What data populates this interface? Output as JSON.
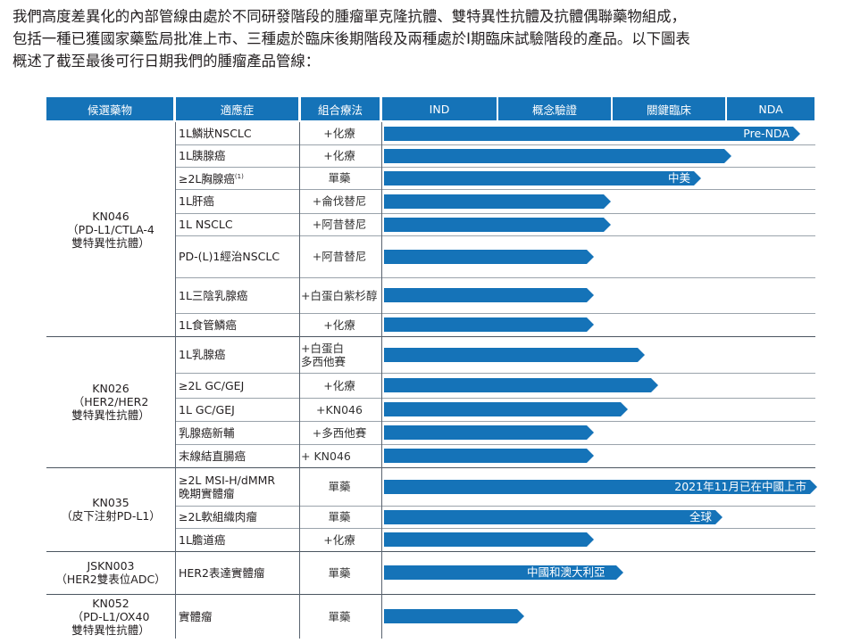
{
  "intro": [
    "我們高度差異化的內部管線由處於不同研發階段的腫瘤單克隆抗體、雙特異性抗體及抗體偶聯藥物組成，",
    "包括一種已獲國家藥監局批准上市、三種處於臨床後期階段及兩種處於I期臨床試驗階段的產品。以下圖表",
    "概述了截至最後可行日期我們的腫瘤產品管線："
  ],
  "headers": {
    "candidate": "候選藥物",
    "indication": "適應症",
    "combination": "組合療法",
    "ind": "IND",
    "poc": "概念驗證",
    "pivotal": "關鍵臨床",
    "nda": "NDA"
  },
  "drugs": [
    {
      "lines": [
        "KN046",
        "（PD-L1/CTLA-4",
        "雙特異性抗體）"
      ]
    },
    {
      "lines": [
        "KN026",
        "（HER2/HER2",
        "雙特異性抗體）"
      ]
    },
    {
      "lines": [
        "KN035",
        "（皮下注射PD-L1）"
      ]
    },
    {
      "lines": [
        "JSKN003",
        "（HER2雙表位ADC）"
      ]
    },
    {
      "lines": [
        "KN052",
        "（PD-L1/OX40",
        "雙特異性抗體）"
      ]
    }
  ],
  "rows": [
    {
      "indication": "1L鱗狀NSCLC",
      "combination": "+化療",
      "progress": 0.95,
      "label": "Pre-NDA"
    },
    {
      "indication": "1L胰腺癌",
      "combination": "+化療",
      "progress": 0.79,
      "label": ""
    },
    {
      "indication": "≥2L胸腺癌",
      "indication_sup": "(1)",
      "combination": "單藥",
      "progress": 0.72,
      "label": "中美"
    },
    {
      "indication": "1L肝癌",
      "combination": "+侖伐替尼",
      "progress": 0.51,
      "label": ""
    },
    {
      "indication": "1L NSCLC",
      "combination": "+阿昔替尼",
      "progress": 0.51,
      "label": ""
    },
    {
      "indication": "PD-(L)1經治NSCLC",
      "combination": "+阿昔替尼",
      "progress": 0.47,
      "label": ""
    },
    {
      "indication": "1L三陰乳腺癌",
      "combination": "+白蛋白紫杉醇",
      "progress": 0.47,
      "label": ""
    },
    {
      "indication": "1L食管鱗癌",
      "combination": "+化療",
      "progress": 0.47,
      "label": ""
    },
    {
      "indication": "1L乳腺癌",
      "combination": "+白蛋白\n多西他賽",
      "progress": 0.59,
      "label": ""
    },
    {
      "indication": "≥2L GC/GEJ",
      "combination": "+化療",
      "progress": 0.62,
      "label": ""
    },
    {
      "indication": "1L GC/GEJ",
      "combination": "+KN046",
      "progress": 0.55,
      "label": ""
    },
    {
      "indication": "乳腺癌新輔",
      "combination": "+多西他賽",
      "progress": 0.47,
      "label": ""
    },
    {
      "indication": "末線結直腸癌",
      "combination": "+ KN046",
      "progress": 0.47,
      "label": ""
    },
    {
      "indication": "≥2L MSI-H/dMMR\n晚期實體瘤",
      "combination": "單藥",
      "progress": 0.99,
      "label": "2021年11月已在中國上市"
    },
    {
      "indication": "≥2L軟組織肉瘤",
      "combination": "單藥",
      "progress": 0.77,
      "label": "全球"
    },
    {
      "indication": "1L膽道癌",
      "combination": "+化療",
      "progress": 0.47,
      "label": ""
    },
    {
      "indication": "HER2表達實體瘤",
      "combination": "單藥",
      "progress": 0.54,
      "label": "中國和澳大利亞"
    },
    {
      "indication": "實體瘤",
      "combination": "單藥",
      "progress": 0.31,
      "label": ""
    }
  ],
  "colors": {
    "header_bg": "#1573b8",
    "bar": "#1573b8",
    "header_text": "#ffffff"
  }
}
